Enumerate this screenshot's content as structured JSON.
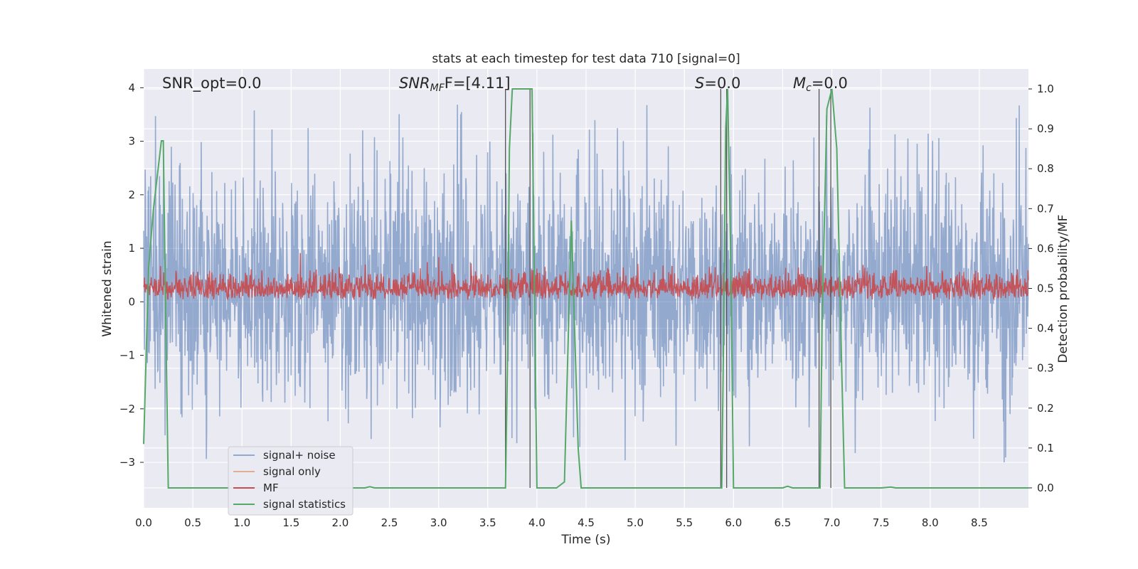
{
  "chart_data": {
    "type": "line",
    "title": "stats at each timestep for test data 710 [signal=0]",
    "xlabel": "Time (s)",
    "ylabel": "Whitened strain",
    "ylabel_right": "Detection probability/MF",
    "xlim": [
      0.0,
      9.0
    ],
    "ylim": [
      -3.85,
      4.35
    ],
    "ylim_right": [
      -0.05,
      1.05
    ],
    "grid": true,
    "legend_position": "lower-left",
    "x_ticks": [
      "0.0",
      "0.5",
      "1.0",
      "1.5",
      "2.0",
      "2.5",
      "3.0",
      "3.5",
      "4.0",
      "4.5",
      "5.0",
      "5.5",
      "6.0",
      "6.5",
      "7.0",
      "7.5",
      "8.0",
      "8.5"
    ],
    "y_ticks": [
      "−3",
      "−2",
      "−1",
      "0",
      "1",
      "2",
      "3",
      "4"
    ],
    "y_ticks_right": [
      "0.0",
      "0.1",
      "0.2",
      "0.3",
      "0.4",
      "0.5",
      "0.6",
      "0.7",
      "0.8",
      "0.9",
      "1.0"
    ],
    "annotations": {
      "snr_opt": "SNR_opt=0.0",
      "snr_mf_main": "SNR",
      "snr_mf_sub": "MF",
      "snr_mf_value": "F=[4.11]",
      "s_main": "S",
      "s_value": "=0.0",
      "mc_main": "M",
      "mc_sub": "c",
      "mc_value": "=0.0"
    },
    "series": [
      {
        "name": "signal+ noise",
        "color": "#4c72b0",
        "axis": "left",
        "kind": "noise",
        "amplitude_range": [
          -3.3,
          4.0
        ]
      },
      {
        "name": "signal only",
        "color": "#dd8452",
        "axis": "left",
        "values": []
      },
      {
        "name": "MF",
        "color": "#c44e52",
        "axis": "right",
        "kind": "band",
        "approx_range": [
          0.47,
          0.59
        ]
      },
      {
        "name": "signal statistics",
        "color": "#55a868",
        "axis": "right",
        "x": [
          0.0,
          0.05,
          0.1,
          0.18,
          0.2,
          0.22,
          0.25,
          0.3,
          0.5,
          1.0,
          1.5,
          2.0,
          2.25,
          2.3,
          2.35,
          2.4,
          3.0,
          3.5,
          3.68,
          3.7,
          3.72,
          3.75,
          3.8,
          3.85,
          3.9,
          3.95,
          3.97,
          4.0,
          4.2,
          4.28,
          4.35,
          4.42,
          4.45,
          4.5,
          5.0,
          5.5,
          5.88,
          5.9,
          5.92,
          5.94,
          5.97,
          6.0,
          6.5,
          6.55,
          6.6,
          6.7,
          6.88,
          6.9,
          6.95,
          7.0,
          7.05,
          7.1,
          7.13,
          7.15,
          7.5,
          7.6,
          7.65,
          7.7,
          8.0,
          9.0
        ],
        "y": [
          0.11,
          0.55,
          0.7,
          0.87,
          0.87,
          0.5,
          0.0,
          0.0,
          0.0,
          0.0,
          0.0,
          0.0,
          0.0,
          0.003,
          0.0,
          0.0,
          0.0,
          0.0,
          0.0,
          0.3,
          0.85,
          1.0,
          1.0,
          1.0,
          1.0,
          1.0,
          0.6,
          0.0,
          0.0,
          0.015,
          0.67,
          0.1,
          0.0,
          0.0,
          0.0,
          0.0,
          0.0,
          0.4,
          0.9,
          1.0,
          0.6,
          0.0,
          0.0,
          0.004,
          0.0,
          0.0,
          0.0,
          0.4,
          0.95,
          1.0,
          0.85,
          0.3,
          0.0,
          0.0,
          0.0,
          0.002,
          0.0,
          0.0,
          0.0,
          0.0
        ]
      }
    ],
    "vertical_lines_right": [
      {
        "x": 3.68,
        "range": [
          0.0,
          1.0
        ]
      },
      {
        "x": 3.93,
        "range": [
          0.0,
          1.0
        ]
      },
      {
        "x": 5.87,
        "range": [
          0.0,
          1.0
        ]
      },
      {
        "x": 5.93,
        "range": [
          0.0,
          1.0
        ]
      },
      {
        "x": 6.87,
        "range": [
          0.0,
          1.0
        ]
      },
      {
        "x": 6.99,
        "range": [
          0.0,
          1.0
        ]
      }
    ]
  }
}
